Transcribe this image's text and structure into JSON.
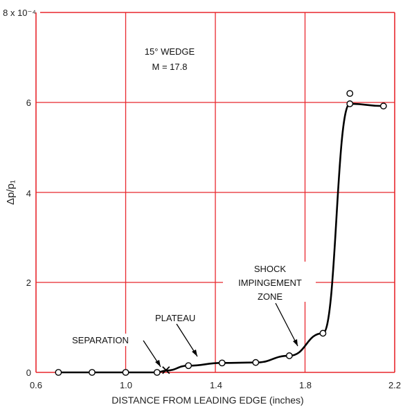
{
  "chart_data": {
    "type": "line",
    "xlabel": "DISTANCE FROM LEADING EDGE (inches)",
    "ylabel": "Δp/p₁",
    "ylim": [
      0,
      8
    ],
    "xlim": [
      0.6,
      2.2
    ],
    "y_scale_label": "8 x 10⁻⁴",
    "x_ticks": [
      "0.6",
      "1.0",
      "1.4",
      "1.8",
      "2.2"
    ],
    "y_ticks": [
      "0",
      "2",
      "4",
      "6"
    ],
    "grid": true,
    "colors": {
      "grid": "#e8262c",
      "curve": "#000000",
      "marker": "#ffffff"
    },
    "annotation_box": {
      "line1": "15° WEDGE",
      "line2": "M = 17.8"
    },
    "series": [
      {
        "points": [
          {
            "x": 0.7,
            "y": 0.0
          },
          {
            "x": 0.85,
            "y": 0.0
          },
          {
            "x": 1.0,
            "y": 0.0
          },
          {
            "x": 1.14,
            "y": 0.0
          },
          {
            "x": 1.28,
            "y": 0.15
          },
          {
            "x": 1.43,
            "y": 0.21
          },
          {
            "x": 1.58,
            "y": 0.22
          },
          {
            "x": 1.73,
            "y": 0.37
          },
          {
            "x": 1.88,
            "y": 0.87
          },
          {
            "x": 2.0,
            "y": 5.97
          },
          {
            "x": 2.15,
            "y": 5.92
          },
          {
            "x": 2.0,
            "y": 6.2
          }
        ],
        "separation_point": {
          "x": 1.18,
          "y": 0.05
        }
      }
    ],
    "annotations": [
      {
        "text": "SEPARATION",
        "x": 1.18,
        "y": 0.05
      },
      {
        "text": "PLATEAU",
        "x": 1.33,
        "y": 0.2
      },
      {
        "text": "SHOCK",
        "x": 1.85,
        "y": 0.7
      },
      {
        "text": "IMPINGEMENT",
        "x": 1.85,
        "y": 0.7
      },
      {
        "text": "ZONE",
        "x": 1.85,
        "y": 0.7
      }
    ]
  }
}
